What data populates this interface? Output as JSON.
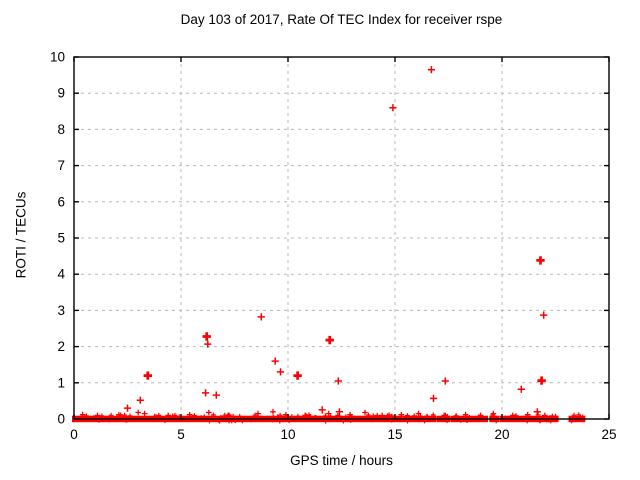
{
  "window": {
    "title": "Day 103 of 2017, Rate Of TEC Index for receiver rspe"
  },
  "chart_data": {
    "type": "scatter",
    "title": "Day 103 of 2017, Rate Of TEC Index for receiver rspe",
    "xlabel": "GPS time / hours",
    "ylabel": "ROTI / TECUs",
    "xlim": [
      0,
      25
    ],
    "ylim": [
      0,
      10
    ],
    "xticks": [
      0,
      5,
      10,
      15,
      20,
      25
    ],
    "yticks": [
      0,
      1,
      2,
      3,
      4,
      5,
      6,
      7,
      8,
      9,
      10
    ],
    "grid": "dashed",
    "legend": "none",
    "marker": "plus",
    "marker_color": "#ff0000",
    "frame_color": "#000000",
    "grid_color": "#b8b8b8",
    "outliers": [
      {
        "x": 2.5,
        "y": 0.3,
        "bold": false
      },
      {
        "x": 3.1,
        "y": 0.52,
        "bold": false
      },
      {
        "x": 3.45,
        "y": 1.2,
        "bold": true
      },
      {
        "x": 6.2,
        "y": 2.28,
        "bold": true
      },
      {
        "x": 6.25,
        "y": 2.07,
        "bold": false
      },
      {
        "x": 6.15,
        "y": 0.72,
        "bold": false
      },
      {
        "x": 6.65,
        "y": 0.66,
        "bold": false
      },
      {
        "x": 8.75,
        "y": 2.82,
        "bold": false
      },
      {
        "x": 9.4,
        "y": 1.6,
        "bold": false
      },
      {
        "x": 9.65,
        "y": 1.3,
        "bold": false
      },
      {
        "x": 10.45,
        "y": 1.2,
        "bold": true
      },
      {
        "x": 11.6,
        "y": 0.25,
        "bold": false
      },
      {
        "x": 11.95,
        "y": 2.18,
        "bold": true
      },
      {
        "x": 12.35,
        "y": 1.05,
        "bold": false
      },
      {
        "x": 12.4,
        "y": 0.2,
        "bold": false
      },
      {
        "x": 14.9,
        "y": 8.6,
        "bold": false
      },
      {
        "x": 16.7,
        "y": 9.65,
        "bold": false
      },
      {
        "x": 16.8,
        "y": 0.57,
        "bold": false
      },
      {
        "x": 17.35,
        "y": 1.05,
        "bold": false
      },
      {
        "x": 20.9,
        "y": 0.82,
        "bold": false
      },
      {
        "x": 21.65,
        "y": 0.2,
        "bold": false
      },
      {
        "x": 21.8,
        "y": 4.38,
        "bold": true
      },
      {
        "x": 21.95,
        "y": 2.87,
        "bold": false
      },
      {
        "x": 21.85,
        "y": 1.06,
        "bold": true
      }
    ],
    "baseline_band": {
      "y_center": 0.0,
      "half_height": 0.09,
      "segments": [
        [
          0.0,
          16.85
        ],
        [
          17.05,
          17.5
        ],
        [
          17.7,
          19.25
        ],
        [
          19.5,
          19.8
        ],
        [
          20.0,
          22.55
        ],
        [
          23.2,
          23.8
        ]
      ]
    },
    "band_spikes": [
      {
        "x": 0.4,
        "y": 0.12
      },
      {
        "x": 1.1,
        "y": 0.1
      },
      {
        "x": 2.1,
        "y": 0.12
      },
      {
        "x": 3.0,
        "y": 0.18
      },
      {
        "x": 3.3,
        "y": 0.15
      },
      {
        "x": 4.4,
        "y": 0.1
      },
      {
        "x": 5.4,
        "y": 0.12
      },
      {
        "x": 6.3,
        "y": 0.18
      },
      {
        "x": 7.2,
        "y": 0.1
      },
      {
        "x": 8.6,
        "y": 0.15
      },
      {
        "x": 9.3,
        "y": 0.2
      },
      {
        "x": 9.9,
        "y": 0.12
      },
      {
        "x": 10.8,
        "y": 0.1
      },
      {
        "x": 11.9,
        "y": 0.15
      },
      {
        "x": 12.9,
        "y": 0.12
      },
      {
        "x": 13.6,
        "y": 0.18
      },
      {
        "x": 14.4,
        "y": 0.1
      },
      {
        "x": 15.3,
        "y": 0.12
      },
      {
        "x": 16.1,
        "y": 0.15
      },
      {
        "x": 17.3,
        "y": 0.1
      },
      {
        "x": 18.3,
        "y": 0.12
      },
      {
        "x": 19.0,
        "y": 0.1
      },
      {
        "x": 19.6,
        "y": 0.15
      },
      {
        "x": 20.5,
        "y": 0.1
      },
      {
        "x": 21.2,
        "y": 0.12
      },
      {
        "x": 22.0,
        "y": 0.1
      }
    ]
  }
}
